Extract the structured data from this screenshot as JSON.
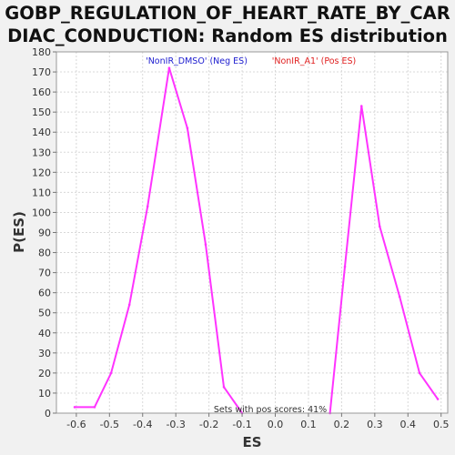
{
  "chart_data": {
    "type": "line",
    "title_lines": [
      "GOBP_REGULATION_OF_HEART_RATE_BY_CAR",
      "DIAC_CONDUCTION: Random ES distribution"
    ],
    "xlabel": "ES",
    "ylabel": "P(ES)",
    "xlim": [
      -0.66,
      0.52
    ],
    "ylim": [
      0,
      180
    ],
    "x_ticks": [
      -0.6,
      -0.5,
      -0.4,
      -0.3,
      -0.2,
      -0.1,
      0.0,
      0.1,
      0.2,
      0.3,
      0.4,
      0.5
    ],
    "x_tick_labels": [
      "-0.6",
      "-0.5",
      "-0.4",
      "-0.3",
      "-0.2",
      "-0.1",
      "0.0",
      "0.1",
      "0.2",
      "0.3",
      "0.4",
      "0.5"
    ],
    "y_ticks": [
      0,
      10,
      20,
      30,
      40,
      50,
      60,
      70,
      80,
      90,
      100,
      110,
      120,
      130,
      140,
      150,
      160,
      170,
      180
    ],
    "y_tick_labels": [
      "0",
      "10",
      "20",
      "30",
      "40",
      "50",
      "60",
      "70",
      "80",
      "90",
      "100",
      "110",
      "120",
      "130",
      "140",
      "150",
      "160",
      "170",
      "180"
    ],
    "grid": true,
    "legend": [
      {
        "label": "'NonIR_DMSO' (Neg ES)",
        "color": "#2020d0"
      },
      {
        "label": "'NonIR_A1' (Pos ES)",
        "color": "#e02020"
      }
    ],
    "annotation": "Sets with pos scores: 41%",
    "line_color": "#ff33ff",
    "series": [
      {
        "x": [
          -0.605,
          -0.545,
          -0.495,
          -0.44,
          -0.385,
          -0.32,
          -0.265,
          -0.21,
          -0.155,
          -0.1
        ],
        "y": [
          3,
          3,
          20,
          54,
          103,
          172,
          142,
          84,
          13,
          0
        ]
      },
      {
        "x": [
          0.165,
          0.21,
          0.26,
          0.315,
          0.375,
          0.435,
          0.49
        ],
        "y": [
          0,
          73,
          153,
          93,
          58,
          20,
          7
        ]
      }
    ]
  }
}
